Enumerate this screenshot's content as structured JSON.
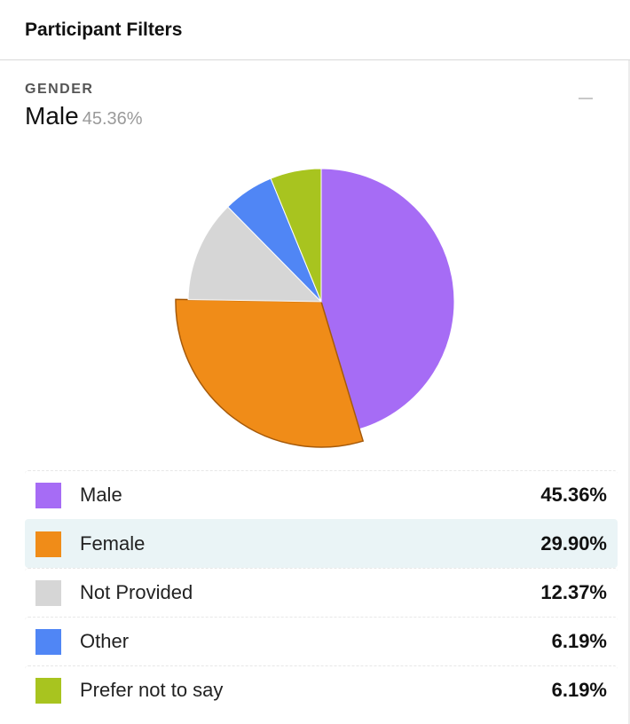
{
  "header": {
    "title": "Participant Filters"
  },
  "filter": {
    "section_label": "GENDER",
    "selected_name": "Male",
    "selected_pct": "45.36%"
  },
  "chart_data": {
    "type": "pie",
    "title": "",
    "highlighted": "Female",
    "slices": [
      {
        "label": "Male",
        "value": 45.36,
        "display": "45.36%",
        "color": "#a66cf5"
      },
      {
        "label": "Female",
        "value": 29.9,
        "display": "29.90%",
        "color": "#f08c18"
      },
      {
        "label": "Not Provided",
        "value": 12.37,
        "display": "12.37%",
        "color": "#d6d6d6"
      },
      {
        "label": "Other",
        "value": 6.19,
        "display": "6.19%",
        "color": "#5086f5"
      },
      {
        "label": "Prefer not to say",
        "value": 6.19,
        "display": "6.19%",
        "color": "#a8c41f"
      }
    ]
  }
}
